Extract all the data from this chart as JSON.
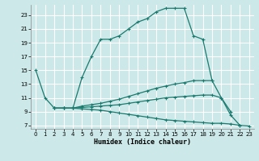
{
  "xlabel": "Humidex (Indice chaleur)",
  "bg_color": "#cce8e8",
  "grid_color": "#ffffff",
  "line_color": "#1a7a6e",
  "xlim": [
    -0.5,
    23.5
  ],
  "ylim": [
    6.5,
    24.5
  ],
  "xticks": [
    0,
    1,
    2,
    3,
    4,
    5,
    6,
    7,
    8,
    9,
    10,
    11,
    12,
    13,
    14,
    15,
    16,
    17,
    18,
    19,
    20,
    21,
    22,
    23
  ],
  "yticks": [
    7,
    9,
    11,
    13,
    15,
    17,
    19,
    21,
    23
  ],
  "series": [
    {
      "x": [
        0,
        1,
        2,
        3,
        4,
        5,
        6,
        7,
        8,
        9,
        10,
        11,
        12,
        13,
        14,
        15,
        16,
        17,
        18,
        19
      ],
      "y": [
        15,
        11,
        9.5,
        9.5,
        9.5,
        14,
        17,
        19.5,
        19.5,
        20,
        21.0,
        22.0,
        22.5,
        23.5,
        24.0,
        24.0,
        24.0,
        20.0,
        19.5,
        13.5
      ]
    },
    {
      "x": [
        2,
        3,
        4,
        5,
        6,
        7,
        8,
        9,
        10,
        11,
        12,
        13,
        14,
        15,
        16,
        17,
        18,
        19,
        20,
        21
      ],
      "y": [
        9.5,
        9.5,
        9.5,
        9.8,
        10.0,
        10.2,
        10.5,
        10.8,
        11.2,
        11.6,
        12.0,
        12.4,
        12.7,
        13.0,
        13.2,
        13.5,
        13.5,
        13.5,
        11.0,
        9.0
      ]
    },
    {
      "x": [
        2,
        3,
        4,
        5,
        6,
        7,
        8,
        9,
        10,
        11,
        12,
        13,
        14,
        15,
        16,
        17,
        18,
        19,
        20,
        21,
        22
      ],
      "y": [
        9.5,
        9.5,
        9.5,
        9.6,
        9.7,
        9.8,
        9.9,
        10.0,
        10.2,
        10.4,
        10.6,
        10.8,
        11.0,
        11.1,
        11.2,
        11.3,
        11.4,
        11.4,
        11.0,
        8.5,
        7.0
      ]
    },
    {
      "x": [
        2,
        3,
        4,
        5,
        6,
        7,
        8,
        9,
        10,
        11,
        12,
        13,
        14,
        15,
        16,
        17,
        18,
        19,
        20,
        21,
        22,
        23
      ],
      "y": [
        9.5,
        9.5,
        9.5,
        9.4,
        9.3,
        9.2,
        9.0,
        8.8,
        8.6,
        8.4,
        8.2,
        8.0,
        7.8,
        7.7,
        7.6,
        7.5,
        7.4,
        7.3,
        7.3,
        7.2,
        7.0,
        6.9
      ]
    }
  ]
}
